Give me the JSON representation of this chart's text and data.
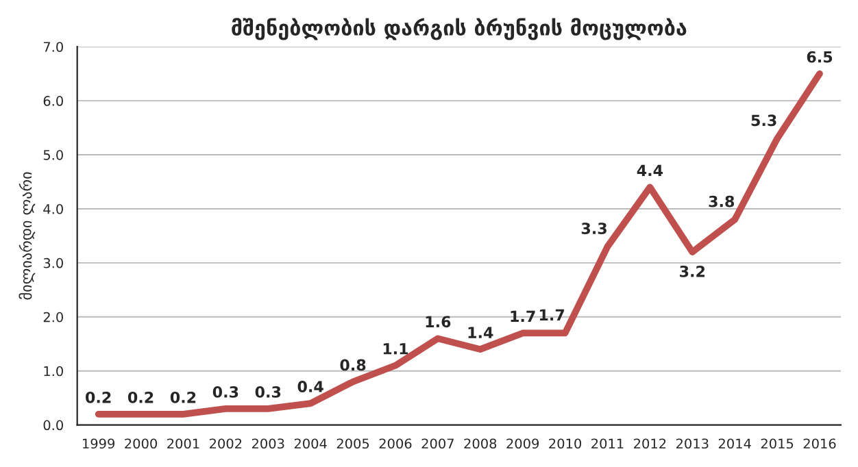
{
  "chart_data": {
    "type": "line",
    "title": "მშენებლობის დარგის ბრუნვის მოცულობა",
    "ylabel": "მილიარდი ლარი",
    "categories": [
      "1999",
      "2000",
      "2001",
      "2002",
      "2003",
      "2004",
      "2005",
      "2006",
      "2007",
      "2008",
      "2009",
      "2010",
      "2011",
      "2012",
      "2013",
      "2014",
      "2015",
      "2016"
    ],
    "series": [
      {
        "color": "#c0504d",
        "values": [
          0.2,
          0.2,
          0.2,
          0.3,
          0.3,
          0.4,
          0.8,
          1.1,
          1.6,
          1.4,
          1.7,
          1.7,
          3.3,
          4.4,
          3.2,
          3.8,
          5.3,
          6.5
        ]
      }
    ],
    "ylim": [
      0,
      7
    ],
    "yticks": [
      {
        "value": 0,
        "label": "0.0"
      },
      {
        "value": 1,
        "label": "1.0"
      },
      {
        "value": 2,
        "label": "2.0"
      },
      {
        "value": 3,
        "label": "3.0"
      },
      {
        "value": 4,
        "label": "4.0"
      },
      {
        "value": 5,
        "label": "5.0"
      },
      {
        "value": 6,
        "label": "6.0"
      },
      {
        "value": 7,
        "label": "7.0"
      }
    ],
    "grid": "y",
    "data_labels": true,
    "marker": "none",
    "line_style": "solid"
  }
}
